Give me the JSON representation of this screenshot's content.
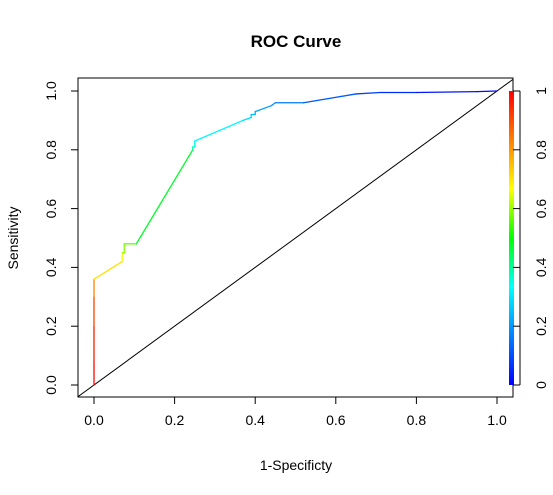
{
  "chart_data": {
    "type": "line",
    "title": "ROC Curve",
    "xlabel": "1-Specificty",
    "ylabel": "Sensitivity",
    "xlim": [
      0,
      1
    ],
    "ylim": [
      0,
      1
    ],
    "x_ticks": [
      "0.0",
      "0.2",
      "0.4",
      "0.6",
      "0.8",
      "1.0"
    ],
    "y_ticks": [
      "0.0",
      "0.2",
      "0.4",
      "0.6",
      "0.8",
      "1.0"
    ],
    "colorbar_ticks": [
      "0",
      "0.2",
      "0.4",
      "0.6",
      "0.8",
      "1"
    ],
    "colorbar_range": [
      0,
      1
    ],
    "colorbar_palette": [
      "#ff0000",
      "#ff8000",
      "#ffff00",
      "#00ff00",
      "#00ffff",
      "#0080ff",
      "#0000ff"
    ],
    "grid": false,
    "reference_line": {
      "x": [
        0,
        1
      ],
      "y": [
        0,
        1
      ],
      "color": "#000000"
    },
    "series": [
      {
        "x": [
          0.0,
          0.0,
          0.0,
          0.0,
          0.0,
          0.0,
          0.0,
          0.07,
          0.07,
          0.075,
          0.075,
          0.105,
          0.245,
          0.245,
          0.25,
          0.25,
          0.37,
          0.39,
          0.39,
          0.4,
          0.4,
          0.44,
          0.45,
          0.52,
          0.65,
          0.71,
          0.8,
          0.95,
          1.0
        ],
        "y": [
          0.0,
          0.08,
          0.2,
          0.3,
          0.36,
          0.36,
          0.36,
          0.42,
          0.45,
          0.45,
          0.48,
          0.48,
          0.8,
          0.81,
          0.81,
          0.83,
          0.9,
          0.91,
          0.92,
          0.92,
          0.93,
          0.95,
          0.96,
          0.96,
          0.99,
          0.995,
          0.995,
          0.998,
          1.0
        ],
        "threshold": [
          1.0,
          0.98,
          0.95,
          0.88,
          0.78,
          0.74,
          0.73,
          0.68,
          0.63,
          0.6,
          0.57,
          0.55,
          0.4,
          0.38,
          0.37,
          0.35,
          0.3,
          0.28,
          0.26,
          0.24,
          0.22,
          0.2,
          0.18,
          0.14,
          0.1,
          0.07,
          0.04,
          0.02,
          0.0
        ]
      }
    ]
  }
}
